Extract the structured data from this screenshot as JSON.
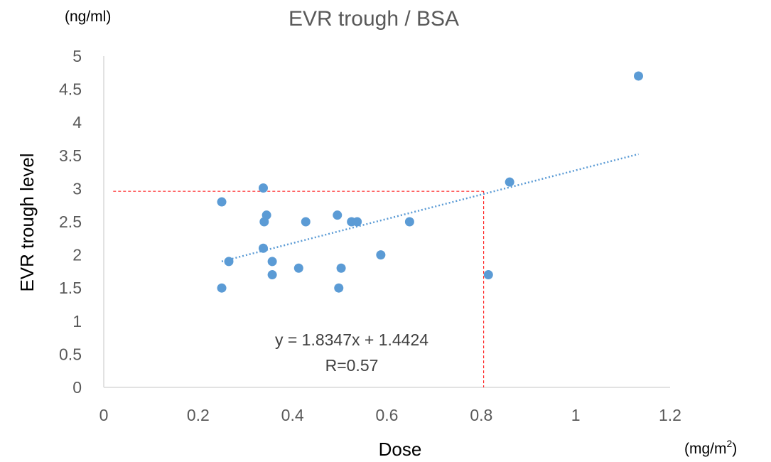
{
  "chart_data": {
    "type": "scatter",
    "title": "EVR trough / BSA",
    "xlabel": "Dose",
    "ylabel": "EVR trough level",
    "x_unit": "(mg/m",
    "x_unit_sup": "2",
    "x_unit_close": ")",
    "y_unit": "(ng/ml)",
    "xlim": [
      0,
      1.2
    ],
    "ylim": [
      0,
      5
    ],
    "x_ticks": [
      "0",
      "0.2",
      "0.4",
      "0.6",
      "0.8",
      "1",
      "1.2"
    ],
    "y_ticks": [
      "0",
      "0.5",
      "1",
      "1.5",
      "2",
      "2.5",
      "3",
      "3.5",
      "4",
      "4.5",
      "5"
    ],
    "grid": false,
    "points": [
      {
        "x": 0.25,
        "y": 2.8
      },
      {
        "x": 0.25,
        "y": 1.5
      },
      {
        "x": 0.265,
        "y": 1.9
      },
      {
        "x": 0.338,
        "y": 3.01
      },
      {
        "x": 0.34,
        "y": 2.5
      },
      {
        "x": 0.345,
        "y": 2.6
      },
      {
        "x": 0.338,
        "y": 2.1
      },
      {
        "x": 0.357,
        "y": 1.9
      },
      {
        "x": 0.357,
        "y": 1.7
      },
      {
        "x": 0.413,
        "y": 1.8
      },
      {
        "x": 0.428,
        "y": 2.5
      },
      {
        "x": 0.495,
        "y": 2.6
      },
      {
        "x": 0.498,
        "y": 1.5
      },
      {
        "x": 0.503,
        "y": 1.8
      },
      {
        "x": 0.525,
        "y": 2.5
      },
      {
        "x": 0.537,
        "y": 2.5
      },
      {
        "x": 0.587,
        "y": 2.0
      },
      {
        "x": 0.648,
        "y": 2.5
      },
      {
        "x": 0.815,
        "y": 1.7
      },
      {
        "x": 0.86,
        "y": 3.1
      },
      {
        "x": 1.133,
        "y": 4.7
      }
    ],
    "trendline": {
      "type": "linear",
      "slope": 1.8347,
      "intercept": 1.4424,
      "x_range": [
        0.25,
        1.133
      ],
      "equation": "y = 1.8347x + 1.4424",
      "r_label": "R=0.57"
    },
    "reference_lines": {
      "x": 0.805,
      "y": 2.96,
      "x_start": 0.02
    },
    "colors": {
      "points": "#5b9bd5",
      "trendline": "#5b9bd5",
      "reference": "#ff0000",
      "axis": "#d9d9d9",
      "title": "#595959",
      "ticks": "#595959"
    }
  }
}
